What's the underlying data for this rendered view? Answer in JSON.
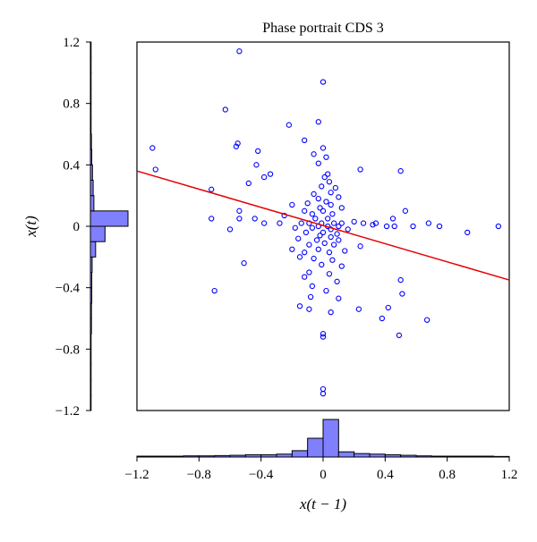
{
  "chart_data": {
    "type": "scatter",
    "title": "Phase portrait CDS 3",
    "xlabel": "x(t − 1)",
    "ylabel": "x(t)",
    "xlim": [
      -1.2,
      1.2
    ],
    "ylim": [
      -1.2,
      1.2
    ],
    "x_ticks": [
      "−1.2",
      "−0.8",
      "−0.4",
      "0",
      "0.4",
      "0.8",
      "1.2"
    ],
    "y_ticks": [
      "1.2",
      "0.8",
      "0.4",
      "0",
      "−0.4",
      "−0.8",
      "−1.2"
    ],
    "grid": false,
    "colors": {
      "points": "#0000ff",
      "fit_line": "#e60000",
      "histogram_fill": "#8080ff",
      "histogram_edge": "#000000"
    },
    "fit_line": {
      "x": [
        -1.2,
        1.2
      ],
      "y": [
        0.36,
        -0.35
      ]
    },
    "points": [
      {
        "x": -0.54,
        "y": 1.14
      },
      {
        "x": 0.0,
        "y": 0.94
      },
      {
        "x": -0.63,
        "y": 0.76
      },
      {
        "x": -0.22,
        "y": 0.66
      },
      {
        "x": -0.03,
        "y": 0.68
      },
      {
        "x": -0.12,
        "y": 0.56
      },
      {
        "x": -0.55,
        "y": 0.54
      },
      {
        "x": -0.56,
        "y": 0.52
      },
      {
        "x": -0.42,
        "y": 0.49
      },
      {
        "x": 0.0,
        "y": 0.51
      },
      {
        "x": -1.1,
        "y": 0.51
      },
      {
        "x": -0.06,
        "y": 0.47
      },
      {
        "x": 0.02,
        "y": 0.45
      },
      {
        "x": -0.03,
        "y": 0.41
      },
      {
        "x": -0.43,
        "y": 0.4
      },
      {
        "x": -1.08,
        "y": 0.37
      },
      {
        "x": 0.24,
        "y": 0.37
      },
      {
        "x": 0.5,
        "y": 0.36
      },
      {
        "x": -0.34,
        "y": 0.34
      },
      {
        "x": -0.38,
        "y": 0.32
      },
      {
        "x": 0.03,
        "y": 0.34
      },
      {
        "x": 0.01,
        "y": 0.32
      },
      {
        "x": 0.04,
        "y": 0.29
      },
      {
        "x": -0.48,
        "y": 0.28
      },
      {
        "x": -0.01,
        "y": 0.26
      },
      {
        "x": 0.08,
        "y": 0.25
      },
      {
        "x": -0.72,
        "y": 0.24
      },
      {
        "x": 0.05,
        "y": 0.22
      },
      {
        "x": -0.06,
        "y": 0.21
      },
      {
        "x": 0.1,
        "y": 0.19
      },
      {
        "x": -0.03,
        "y": 0.18
      },
      {
        "x": 0.02,
        "y": 0.16
      },
      {
        "x": -0.1,
        "y": 0.15
      },
      {
        "x": 0.05,
        "y": 0.14
      },
      {
        "x": -0.2,
        "y": 0.14
      },
      {
        "x": -0.02,
        "y": 0.12
      },
      {
        "x": 0.12,
        "y": 0.12
      },
      {
        "x": -0.12,
        "y": 0.1
      },
      {
        "x": 0.0,
        "y": 0.1
      },
      {
        "x": -0.54,
        "y": 0.1
      },
      {
        "x": 0.53,
        "y": 0.1
      },
      {
        "x": -0.07,
        "y": 0.08
      },
      {
        "x": 0.06,
        "y": 0.08
      },
      {
        "x": -0.25,
        "y": 0.07
      },
      {
        "x": -0.72,
        "y": 0.05
      },
      {
        "x": -0.44,
        "y": 0.05
      },
      {
        "x": -0.54,
        "y": 0.05
      },
      {
        "x": -0.05,
        "y": 0.05
      },
      {
        "x": 0.03,
        "y": 0.05
      },
      {
        "x": 0.45,
        "y": 0.05
      },
      {
        "x": 0.2,
        "y": 0.03
      },
      {
        "x": -0.38,
        "y": 0.02
      },
      {
        "x": -0.28,
        "y": 0.02
      },
      {
        "x": -0.14,
        "y": 0.02
      },
      {
        "x": -0.09,
        "y": 0.02
      },
      {
        "x": -0.01,
        "y": 0.02
      },
      {
        "x": 0.07,
        "y": 0.02
      },
      {
        "x": 0.12,
        "y": 0.02
      },
      {
        "x": 0.26,
        "y": 0.02
      },
      {
        "x": 0.34,
        "y": 0.02
      },
      {
        "x": 0.68,
        "y": 0.02
      },
      {
        "x": 0.32,
        "y": 0.01
      },
      {
        "x": 0.41,
        "y": 0.0
      },
      {
        "x": 0.46,
        "y": 0.0
      },
      {
        "x": 0.58,
        "y": 0.0
      },
      {
        "x": 0.75,
        "y": 0.0
      },
      {
        "x": 1.13,
        "y": 0.0
      },
      {
        "x": -0.03,
        "y": 0.0
      },
      {
        "x": 0.03,
        "y": 0.0
      },
      {
        "x": 0.1,
        "y": 0.0
      },
      {
        "x": -0.18,
        "y": -0.01
      },
      {
        "x": -0.07,
        "y": -0.01
      },
      {
        "x": 0.05,
        "y": -0.02
      },
      {
        "x": 0.16,
        "y": -0.02
      },
      {
        "x": -0.6,
        "y": -0.02
      },
      {
        "x": 0.93,
        "y": -0.04
      },
      {
        "x": -0.11,
        "y": -0.04
      },
      {
        "x": 0.0,
        "y": -0.04
      },
      {
        "x": 0.09,
        "y": -0.05
      },
      {
        "x": -0.02,
        "y": -0.06
      },
      {
        "x": 0.05,
        "y": -0.07
      },
      {
        "x": -0.16,
        "y": -0.08
      },
      {
        "x": -0.04,
        "y": -0.09
      },
      {
        "x": 0.1,
        "y": -0.09
      },
      {
        "x": 0.01,
        "y": -0.11
      },
      {
        "x": -0.09,
        "y": -0.12
      },
      {
        "x": 0.07,
        "y": -0.12
      },
      {
        "x": 0.24,
        "y": -0.13
      },
      {
        "x": -0.2,
        "y": -0.15
      },
      {
        "x": -0.03,
        "y": -0.15
      },
      {
        "x": 0.14,
        "y": -0.16
      },
      {
        "x": -0.12,
        "y": -0.17
      },
      {
        "x": 0.04,
        "y": -0.17
      },
      {
        "x": -0.15,
        "y": -0.2
      },
      {
        "x": -0.06,
        "y": -0.21
      },
      {
        "x": 0.06,
        "y": -0.22
      },
      {
        "x": -0.51,
        "y": -0.24
      },
      {
        "x": -0.01,
        "y": -0.25
      },
      {
        "x": 0.12,
        "y": -0.26
      },
      {
        "x": -0.09,
        "y": -0.3
      },
      {
        "x": 0.04,
        "y": -0.31
      },
      {
        "x": -0.12,
        "y": -0.33
      },
      {
        "x": 0.09,
        "y": -0.36
      },
      {
        "x": 0.5,
        "y": -0.35
      },
      {
        "x": -0.07,
        "y": -0.39
      },
      {
        "x": -0.7,
        "y": -0.42
      },
      {
        "x": 0.02,
        "y": -0.42
      },
      {
        "x": 0.51,
        "y": -0.44
      },
      {
        "x": -0.08,
        "y": -0.46
      },
      {
        "x": 0.1,
        "y": -0.47
      },
      {
        "x": -0.15,
        "y": -0.52
      },
      {
        "x": 0.42,
        "y": -0.53
      },
      {
        "x": -0.09,
        "y": -0.54
      },
      {
        "x": 0.05,
        "y": -0.56
      },
      {
        "x": 0.23,
        "y": -0.54
      },
      {
        "x": 0.38,
        "y": -0.6
      },
      {
        "x": 0.67,
        "y": -0.61
      },
      {
        "x": 0.0,
        "y": -0.7
      },
      {
        "x": 0.0,
        "y": -0.72
      },
      {
        "x": 0.49,
        "y": -0.71
      },
      {
        "x": 0.0,
        "y": -1.06
      },
      {
        "x": 0.0,
        "y": -1.09
      }
    ],
    "hist_bottom": {
      "edges": [
        -1.2,
        -1.1,
        -1.0,
        -0.9,
        -0.8,
        -0.7,
        -0.6,
        -0.5,
        -0.4,
        -0.3,
        -0.2,
        -0.1,
        0.0,
        0.1,
        0.2,
        0.3,
        0.4,
        0.5,
        0.6,
        0.7,
        0.8,
        0.9,
        1.0,
        1.1,
        1.2
      ],
      "counts": [
        0.3,
        0.3,
        0.3,
        0.4,
        0.4,
        0.5,
        0.6,
        0.8,
        0.8,
        1.0,
        2.2,
        6.5,
        13.0,
        1.8,
        1.2,
        1.0,
        0.8,
        0.6,
        0.4,
        0.3,
        0.3,
        0.3,
        0.3,
        0.2
      ]
    },
    "hist_left": {
      "edges": [
        -1.2,
        -1.1,
        -1.0,
        -0.9,
        -0.8,
        -0.7,
        -0.6,
        -0.5,
        -0.4,
        -0.3,
        -0.2,
        -0.1,
        0.0,
        0.1,
        0.2,
        0.3,
        0.4,
        0.5,
        0.6,
        0.7,
        0.8,
        0.9,
        1.0,
        1.1,
        1.2
      ],
      "counts": [
        0.2,
        0.2,
        0.2,
        0.2,
        0.2,
        0.3,
        0.3,
        0.4,
        0.4,
        0.5,
        1.5,
        4.2,
        10.8,
        1.0,
        0.8,
        0.6,
        0.4,
        0.3,
        0.2,
        0.2,
        0.2,
        0.2,
        0.2,
        0.2
      ]
    }
  }
}
